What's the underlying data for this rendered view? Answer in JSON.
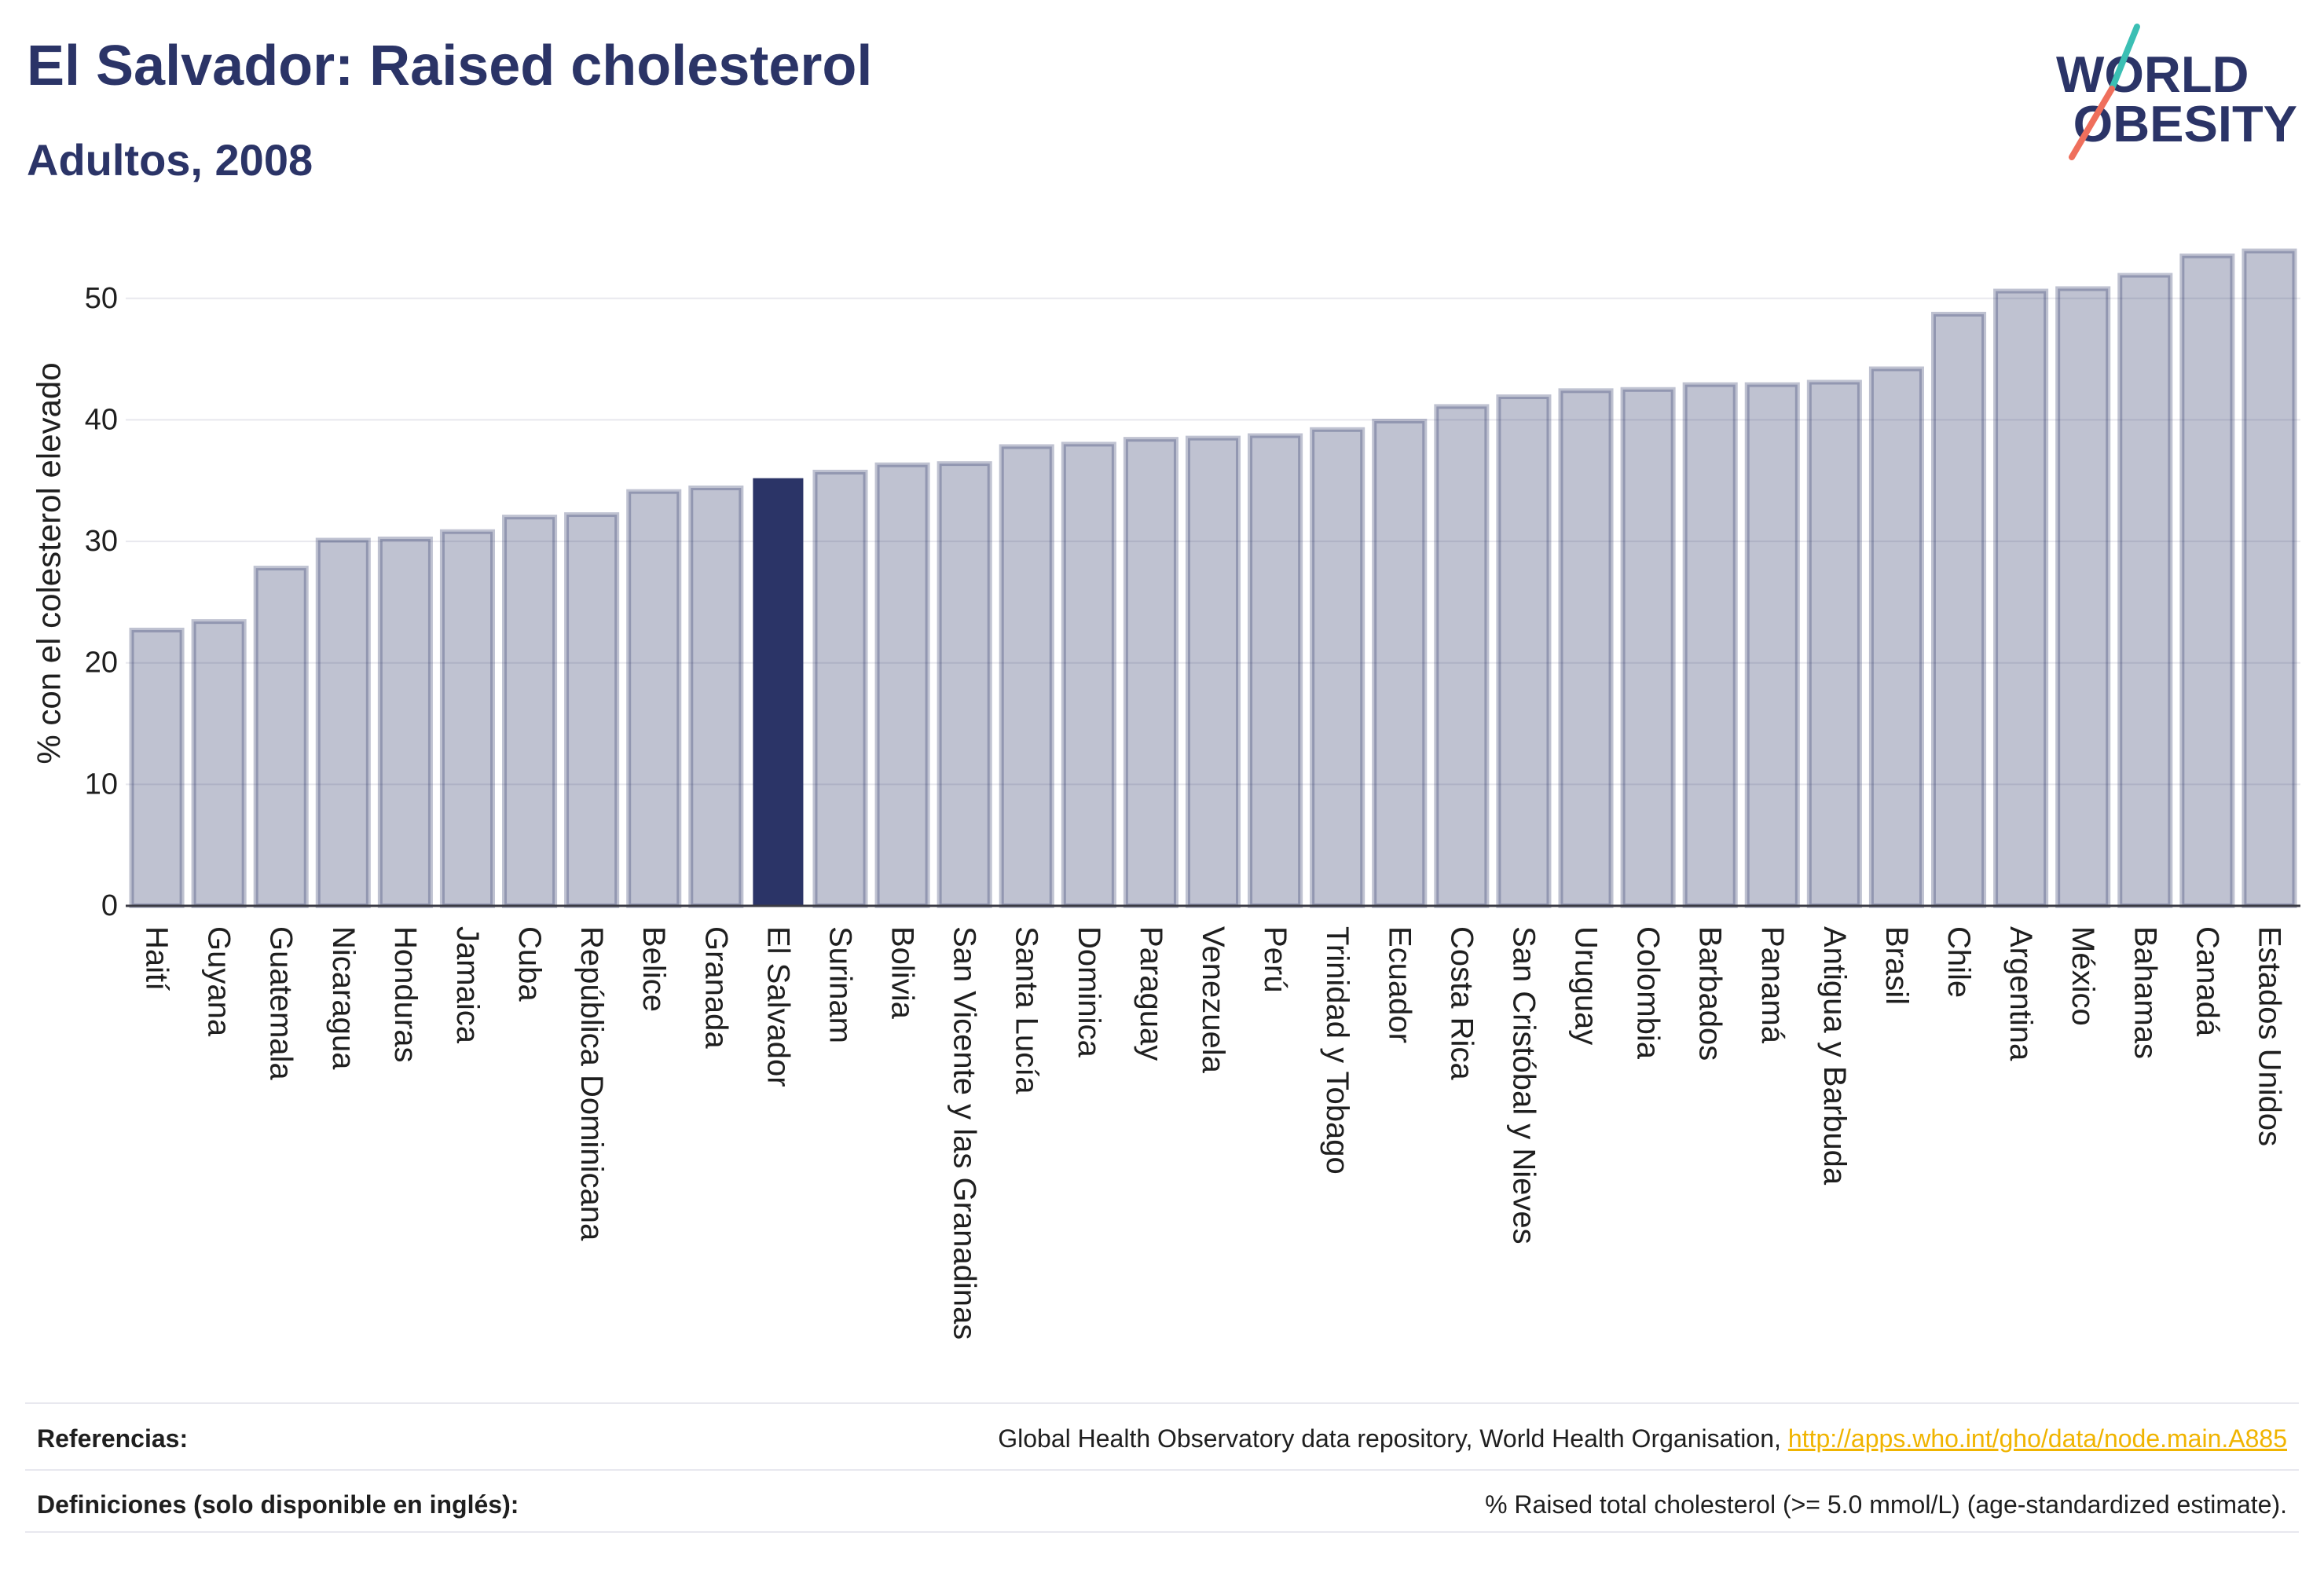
{
  "logo": {
    "line1": "WORLD",
    "line2": "OBESITY"
  },
  "colors": {
    "bar": "#2b3467",
    "highlight": "#2b3467",
    "title": "#2b3467",
    "gridline": "#e8e8ee",
    "link": "#f0b400",
    "logo_teal": "#3bbfb4",
    "logo_coral": "#ef6f5c"
  },
  "chart_data": {
    "type": "bar",
    "title": "El Salvador: Raised cholesterol",
    "subtitle": "Adultos, 2008",
    "xlabel": "",
    "ylabel": "% con el colesterol elevado",
    "ylim": [
      0,
      56
    ],
    "yticks": [
      0,
      10,
      20,
      30,
      40,
      50
    ],
    "grid": true,
    "highlight": "El Salvador",
    "categories": [
      "Haití",
      "Guyana",
      "Guatemala",
      "Nicaragua",
      "Honduras",
      "Jamaica",
      "Cuba",
      "República Dominicana",
      "Belice",
      "Granada",
      "El Salvador",
      "Surinam",
      "Bolivia",
      "San Vicente y las Granadinas",
      "Santa Lucía",
      "Dominica",
      "Paraguay",
      "Venezuela",
      "Perú",
      "Trinidad y Tobago",
      "Ecuador",
      "Costa Rica",
      "San Cristóbal y Nieves",
      "Uruguay",
      "Colombia",
      "Barbados",
      "Panamá",
      "Antigua y Barbuda",
      "Brasil",
      "Chile",
      "Argentina",
      "México",
      "Bahamas",
      "Canadá",
      "Estados Unidos"
    ],
    "values": [
      22.7,
      23.4,
      27.8,
      30.1,
      30.2,
      30.8,
      32.0,
      32.2,
      34.1,
      34.4,
      35.2,
      35.7,
      36.3,
      36.4,
      37.8,
      38.0,
      38.4,
      38.5,
      38.7,
      39.2,
      39.9,
      41.1,
      41.9,
      42.4,
      42.5,
      42.9,
      42.9,
      43.1,
      44.2,
      48.7,
      50.6,
      50.8,
      51.9,
      53.5,
      53.9
    ]
  },
  "footer": {
    "references_label": "Referencias:",
    "references_text": "Global Health Observatory data repository, World Health Organisation,",
    "references_link": "http://apps.who.int/gho/data/node.main.A885",
    "definitions_label": "Definiciones (solo disponible en inglés):",
    "definitions_text": "% Raised total cholesterol (>= 5.0 mmol/L) (age-standardized estimate)."
  }
}
